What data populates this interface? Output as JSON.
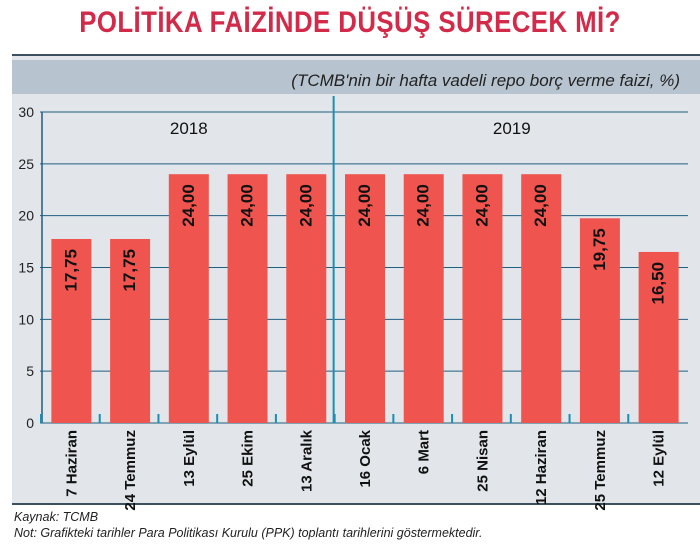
{
  "header": {
    "title": "POLİTİKA FAİZİNDE DÜŞÜŞ SÜRECEK Mİ?",
    "subtitle": "(TCMB'nin bir hafta vadeli repo borç verme faizi, %)"
  },
  "footer": {
    "source": "Kaynak: TCMB",
    "note": "Not: Grafikteki tarihler Para Politikası Kurulu (PPK) toplantı tarihlerini göstermektedir."
  },
  "colors": {
    "bar": "#f0544e",
    "title": "#d22a48",
    "divider": "#1a8fb5",
    "grid": "#1e5f80",
    "header_band": "#b7c4d0",
    "background": "#e2e6ea"
  },
  "chart_data": {
    "type": "bar",
    "categories": [
      "7 Haziran",
      "24 Temmuz",
      "13 Eylül",
      "25 Ekim",
      "13 Aralık",
      "16 Ocak",
      "6 Mart",
      "25 Nisan",
      "12 Haziran",
      "25 Temmuz",
      "12 Eylül"
    ],
    "values": [
      17.75,
      17.75,
      24.0,
      24.0,
      24.0,
      24.0,
      24.0,
      24.0,
      24.0,
      19.75,
      16.5
    ],
    "value_labels": [
      "17,75",
      "17,75",
      "24,00",
      "24,00",
      "24,00",
      "24,00",
      "24,00",
      "24,00",
      "24,00",
      "19,75",
      "16,50"
    ],
    "year_groups": [
      {
        "label": "2018",
        "from_index": 0,
        "to_index": 4
      },
      {
        "label": "2019",
        "from_index": 5,
        "to_index": 10
      }
    ],
    "yticks": [
      0,
      5,
      10,
      15,
      20,
      25,
      30
    ],
    "ylim": [
      0,
      30
    ],
    "grid": true,
    "legend": "none"
  }
}
